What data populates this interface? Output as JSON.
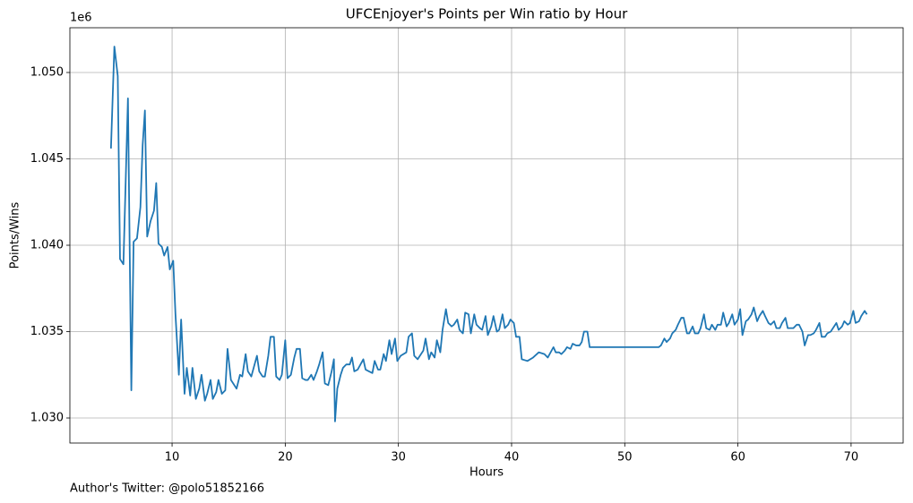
{
  "chart_data": {
    "type": "line",
    "title": "UFCEnjoyer's Points per Win ratio by Hour",
    "xlabel": "Hours",
    "ylabel": "Points/Wins",
    "y_offset_label": "1e6",
    "footnote": "Author's Twitter: @polo51852166",
    "color": "#1f77b4",
    "grid": true,
    "xlim": [
      0.97,
      74.6
    ],
    "ylim": [
      1.02855,
      1.05259
    ],
    "xticks": [
      10,
      20,
      30,
      40,
      50,
      60,
      70
    ],
    "yticks": [
      {
        "value": 1.03,
        "label": "1.030"
      },
      {
        "value": 1.035,
        "label": "1.035"
      },
      {
        "value": 1.04,
        "label": "1.040"
      },
      {
        "value": 1.045,
        "label": "1.045"
      },
      {
        "value": 1.05,
        "label": "1.050"
      }
    ],
    "x": [
      4.6,
      4.9,
      5.2,
      5.4,
      5.7,
      6.1,
      6.4,
      6.6,
      6.9,
      7.2,
      7.4,
      7.6,
      7.8,
      8.1,
      8.4,
      8.6,
      8.8,
      9.1,
      9.3,
      9.6,
      9.8,
      10.1,
      10.3,
      10.6,
      10.8,
      11.1,
      11.3,
      11.6,
      11.8,
      12.1,
      12.4,
      12.6,
      12.9,
      13.1,
      13.4,
      13.6,
      13.9,
      14.1,
      14.4,
      14.7,
      14.9,
      15.2,
      15.7,
      16.0,
      16.2,
      16.5,
      16.7,
      17.0,
      17.5,
      17.7,
      18.0,
      18.2,
      18.5,
      18.7,
      19.0,
      19.2,
      19.5,
      19.7,
      20.0,
      20.2,
      20.5,
      20.8,
      21.0,
      21.3,
      21.5,
      21.8,
      22.0,
      22.3,
      22.5,
      22.8,
      23.0,
      23.3,
      23.5,
      23.8,
      24.1,
      24.3,
      24.4,
      24.6,
      24.9,
      25.1,
      25.4,
      25.7,
      25.9,
      26.1,
      26.4,
      26.9,
      27.1,
      27.4,
      27.7,
      27.9,
      28.2,
      28.4,
      28.7,
      28.9,
      29.2,
      29.4,
      29.7,
      29.9,
      30.2,
      30.7,
      30.9,
      31.2,
      31.4,
      31.7,
      31.9,
      32.2,
      32.4,
      32.7,
      32.9,
      33.2,
      33.4,
      33.7,
      33.9,
      34.2,
      34.4,
      34.7,
      34.9,
      35.2,
      35.4,
      35.7,
      35.9,
      36.2,
      36.4,
      36.7,
      36.9,
      37.2,
      37.4,
      37.7,
      37.9,
      38.2,
      38.4,
      38.7,
      38.9,
      39.2,
      39.4,
      39.7,
      39.9,
      40.2,
      40.4,
      40.7,
      40.9,
      41.4,
      41.9,
      42.4,
      42.9,
      43.2,
      43.7,
      43.9,
      44.2,
      44.4,
      44.7,
      44.9,
      45.2,
      45.4,
      45.7,
      46.0,
      46.2,
      46.4,
      46.7,
      46.9,
      47.5,
      53.0,
      53.2,
      53.5,
      53.7,
      54.0,
      54.2,
      54.5,
      54.7,
      55.0,
      55.2,
      55.5,
      55.7,
      56.0,
      56.2,
      56.5,
      56.7,
      57.0,
      57.2,
      57.5,
      57.7,
      58.0,
      58.2,
      58.5,
      58.7,
      59.0,
      59.2,
      59.5,
      59.7,
      60.0,
      60.2,
      60.4,
      60.7,
      60.9,
      61.2,
      61.4,
      61.7,
      61.9,
      62.2,
      62.4,
      62.7,
      62.9,
      63.2,
      63.4,
      63.7,
      63.9,
      64.2,
      64.4,
      64.7,
      64.9,
      65.2,
      65.4,
      65.7,
      65.9,
      66.2,
      66.4,
      66.7,
      66.9,
      67.2,
      67.4,
      67.7,
      67.9,
      68.2,
      68.4,
      68.7,
      68.9,
      69.2,
      69.4,
      69.7,
      69.9,
      70.2,
      70.4,
      70.7,
      70.9,
      71.2,
      71.4
    ],
    "values": [
      1.0456,
      1.0515,
      1.0498,
      1.0392,
      1.0389,
      1.0485,
      1.0316,
      1.0402,
      1.0404,
      1.0422,
      1.0458,
      1.0478,
      1.0405,
      1.0414,
      1.042,
      1.0436,
      1.0401,
      1.0399,
      1.0394,
      1.0399,
      1.0386,
      1.0391,
      1.036,
      1.0325,
      1.0357,
      1.0314,
      1.0329,
      1.0313,
      1.0329,
      1.0311,
      1.0317,
      1.0325,
      1.031,
      1.0314,
      1.0322,
      1.0311,
      1.0315,
      1.0322,
      1.0314,
      1.0316,
      1.034,
      1.0322,
      1.0317,
      1.0325,
      1.0324,
      1.0337,
      1.0327,
      1.0324,
      1.0336,
      1.0327,
      1.0324,
      1.0324,
      1.0336,
      1.0347,
      1.0347,
      1.0324,
      1.0322,
      1.0325,
      1.0345,
      1.0323,
      1.0325,
      1.0335,
      1.034,
      1.034,
      1.0323,
      1.0322,
      1.0322,
      1.0325,
      1.0322,
      1.0327,
      1.0331,
      1.0338,
      1.032,
      1.0319,
      1.0327,
      1.0334,
      1.0298,
      1.0317,
      1.0325,
      1.0329,
      1.0331,
      1.0331,
      1.0335,
      1.0327,
      1.0328,
      1.0334,
      1.0328,
      1.0327,
      1.0326,
      1.0333,
      1.0328,
      1.0328,
      1.0337,
      1.0333,
      1.0345,
      1.0337,
      1.0346,
      1.0333,
      1.0336,
      1.0338,
      1.0347,
      1.0349,
      1.0336,
      1.0334,
      1.0336,
      1.0339,
      1.0346,
      1.0334,
      1.0338,
      1.0335,
      1.0345,
      1.0338,
      1.0351,
      1.0363,
      1.0355,
      1.0353,
      1.0354,
      1.0357,
      1.0351,
      1.0349,
      1.0361,
      1.036,
      1.0349,
      1.036,
      1.0354,
      1.0352,
      1.0351,
      1.0359,
      1.0348,
      1.0353,
      1.0359,
      1.035,
      1.0351,
      1.036,
      1.0352,
      1.0354,
      1.0357,
      1.0355,
      1.0347,
      1.0347,
      1.0334,
      1.0333,
      1.0335,
      1.0338,
      1.0337,
      1.0335,
      1.0341,
      1.0338,
      1.0338,
      1.0337,
      1.0339,
      1.0341,
      1.034,
      1.0343,
      1.0342,
      1.0342,
      1.0344,
      1.035,
      1.035,
      1.0341,
      1.0341,
      1.0341,
      1.0342,
      1.0346,
      1.0344,
      1.0346,
      1.0349,
      1.0351,
      1.0354,
      1.0358,
      1.0358,
      1.0349,
      1.0349,
      1.0353,
      1.0349,
      1.0349,
      1.0352,
      1.036,
      1.0352,
      1.0351,
      1.0354,
      1.0351,
      1.0354,
      1.0354,
      1.0361,
      1.0353,
      1.0355,
      1.036,
      1.0354,
      1.0357,
      1.0363,
      1.0348,
      1.0356,
      1.0357,
      1.036,
      1.0364,
      1.0356,
      1.0359,
      1.0362,
      1.0359,
      1.0355,
      1.0354,
      1.0356,
      1.0352,
      1.0352,
      1.0355,
      1.0358,
      1.0352,
      1.0352,
      1.0352,
      1.0354,
      1.0354,
      1.035,
      1.0342,
      1.0348,
      1.0348,
      1.0349,
      1.0351,
      1.0355,
      1.0347,
      1.0347,
      1.0349,
      1.035,
      1.0352,
      1.0355,
      1.0351,
      1.0353,
      1.0356,
      1.0354,
      1.0355,
      1.0362,
      1.0355,
      1.0356,
      1.0359,
      1.0362,
      1.036
    ]
  }
}
